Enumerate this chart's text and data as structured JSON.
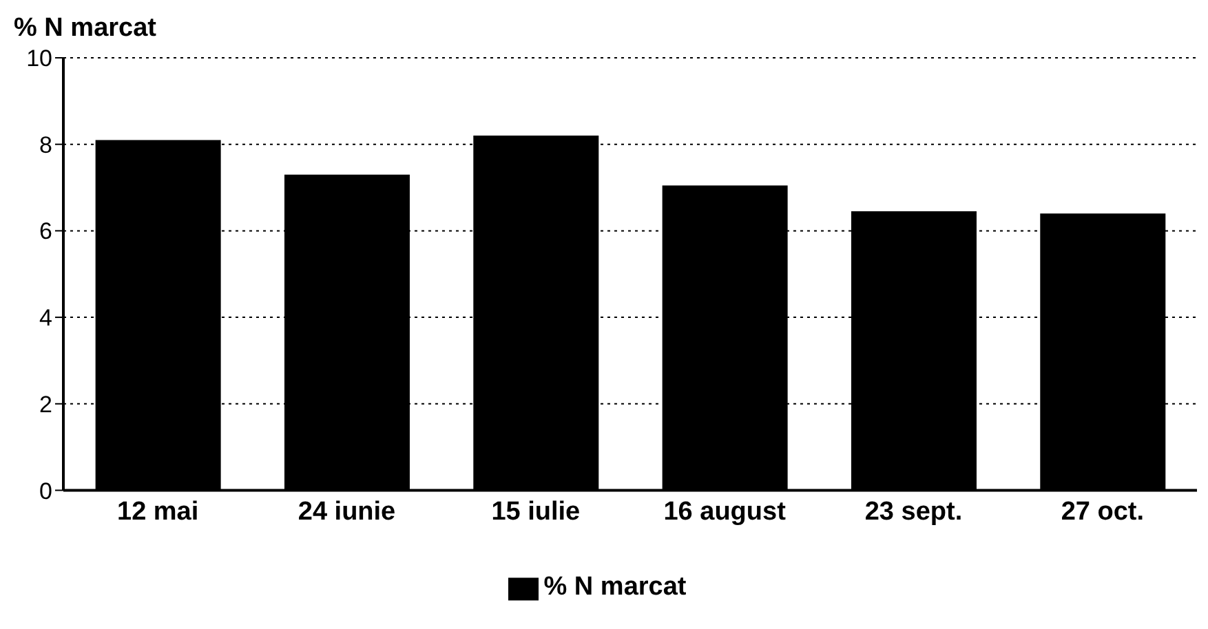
{
  "chart_data": {
    "type": "bar",
    "ylabel": "% N marcat",
    "categories": [
      "12 mai",
      "24 iunie",
      "15 iulie",
      "16 august",
      "23 sept.",
      "27 oct."
    ],
    "series": [
      {
        "name": "% N marcat",
        "color": "#000000",
        "values": [
          8.1,
          7.3,
          8.2,
          7.05,
          6.45,
          6.4
        ]
      }
    ],
    "ylim": [
      0,
      10
    ],
    "yticks": [
      0,
      2,
      4,
      6,
      8,
      10
    ],
    "grid": "y",
    "legend": "bottom"
  }
}
